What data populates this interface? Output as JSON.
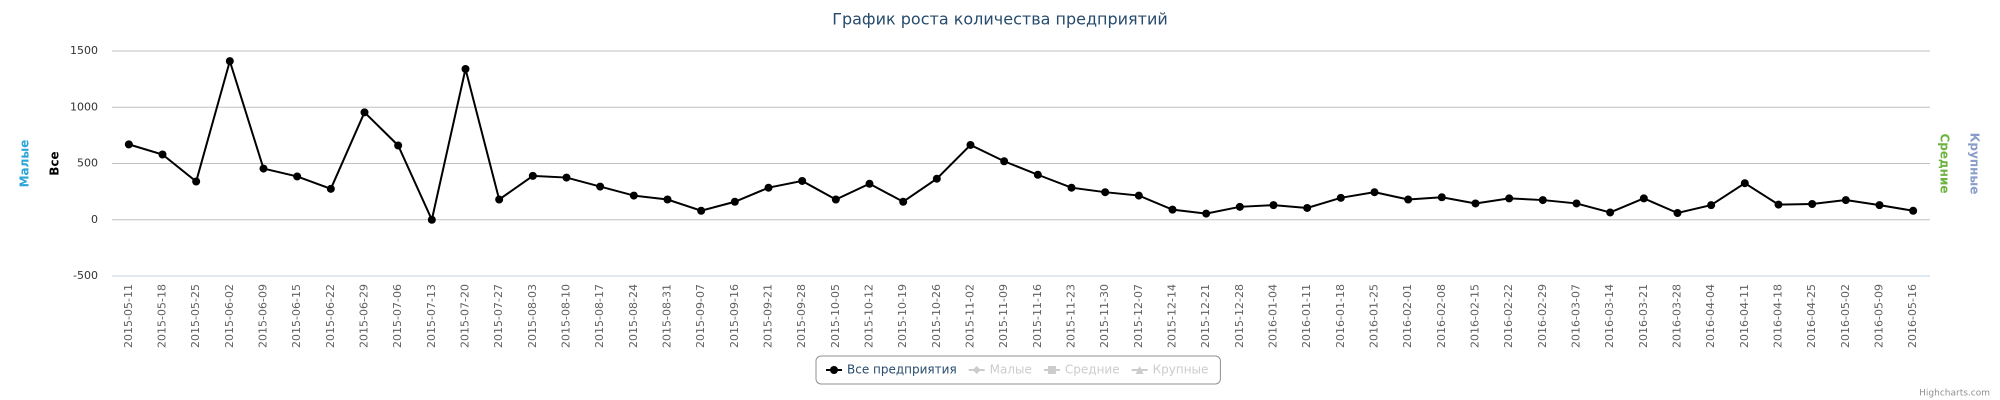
{
  "chart_data": {
    "type": "line",
    "title": "График роста количества предприятий",
    "categories": [
      "2015-05-11",
      "2015-05-18",
      "2015-05-25",
      "2015-06-02",
      "2015-06-09",
      "2015-06-15",
      "2015-06-22",
      "2015-06-29",
      "2015-07-06",
      "2015-07-13",
      "2015-07-20",
      "2015-07-27",
      "2015-08-03",
      "2015-08-10",
      "2015-08-17",
      "2015-08-24",
      "2015-08-31",
      "2015-09-07",
      "2015-09-16",
      "2015-09-21",
      "2015-09-28",
      "2015-10-05",
      "2015-10-12",
      "2015-10-19",
      "2015-10-26",
      "2015-11-02",
      "2015-11-09",
      "2015-11-16",
      "2015-11-23",
      "2015-11-30",
      "2015-12-07",
      "2015-12-14",
      "2015-12-21",
      "2015-12-28",
      "2016-01-04",
      "2016-01-11",
      "2016-01-18",
      "2016-01-25",
      "2016-02-01",
      "2016-02-08",
      "2016-02-15",
      "2016-02-22",
      "2016-02-29",
      "2016-03-07",
      "2016-03-14",
      "2016-03-21",
      "2016-03-28",
      "2016-04-04",
      "2016-04-11",
      "2016-04-18",
      "2016-04-25",
      "2016-05-02",
      "2016-05-09",
      "2016-05-16"
    ],
    "series": [
      {
        "name": "Все предприятия",
        "color": "#000000",
        "symbol": "circle",
        "visible": true,
        "values": [
          670,
          580,
          340,
          1410,
          455,
          385,
          275,
          955,
          660,
          0,
          1340,
          180,
          390,
          375,
          295,
          215,
          180,
          80,
          160,
          285,
          345,
          180,
          320,
          160,
          365,
          665,
          520,
          400,
          285,
          245,
          215,
          90,
          55,
          115,
          130,
          105,
          195,
          245,
          180,
          200,
          145,
          190,
          175,
          145,
          65,
          190,
          60,
          130,
          325,
          135,
          140,
          175,
          130,
          80
        ]
      },
      {
        "name": "Малые",
        "color": "#2ba6d8",
        "symbol": "diamond",
        "visible": false
      },
      {
        "name": "Средние",
        "color": "#6db33f",
        "symbol": "square",
        "visible": false
      },
      {
        "name": "Крупные",
        "color": "#8a9cc9",
        "symbol": "triangle",
        "visible": false
      }
    ],
    "y_axis_titles": [
      {
        "text": "Малые",
        "color": "#2ba6d8",
        "side": "left"
      },
      {
        "text": "Все",
        "color": "#000000",
        "side": "left"
      },
      {
        "text": "Средние",
        "color": "#6db33f",
        "side": "right"
      },
      {
        "text": "Крупные",
        "color": "#8a9cc9",
        "side": "right"
      }
    ],
    "ylim": [
      -500,
      1500
    ],
    "yticks": [
      -500,
      0,
      500,
      1000,
      1500
    ],
    "grid": true,
    "legend": "bottom",
    "credits": "Highcharts.com"
  }
}
